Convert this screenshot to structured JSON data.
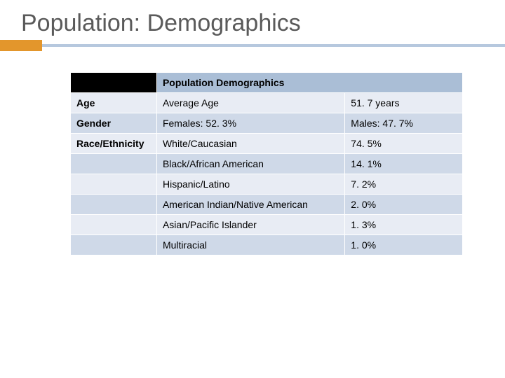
{
  "title": "Population: Demographics",
  "colors": {
    "accent_orange": "#e3962c",
    "accent_blue": "#b6c8de",
    "header_blank": "#000000",
    "header_fill": "#aabed6",
    "row_light": "#e8ecf4",
    "row_dark": "#cfd9e8",
    "text": "#000000",
    "title_text": "#5a5a5a",
    "border": "#ffffff"
  },
  "table": {
    "header_label": "Population Demographics",
    "rows": [
      {
        "label": "Age",
        "c2": "Average Age",
        "c3": "51. 7 years",
        "shade": "light",
        "bold": true
      },
      {
        "label": "Gender",
        "c2": "Females:  52. 3%",
        "c3": "Males:  47. 7%",
        "shade": "dark",
        "bold": true
      },
      {
        "label": "Race/Ethnicity",
        "c2": "White/Caucasian",
        "c3": "74. 5%",
        "shade": "light",
        "bold": true
      },
      {
        "label": "",
        "c2": "Black/African American",
        "c3": "14. 1%",
        "shade": "dark",
        "bold": false
      },
      {
        "label": "",
        "c2": "Hispanic/Latino",
        "c3": "7. 2%",
        "shade": "light",
        "bold": false
      },
      {
        "label": "",
        "c2": "American Indian/Native American",
        "c3": "2. 0%",
        "shade": "dark",
        "bold": false
      },
      {
        "label": "",
        "c2": "Asian/Pacific Islander",
        "c3": "1. 3%",
        "shade": "light",
        "bold": false
      },
      {
        "label": "",
        "c2": "Multiracial",
        "c3": "1. 0%",
        "shade": "dark",
        "bold": false
      }
    ]
  }
}
